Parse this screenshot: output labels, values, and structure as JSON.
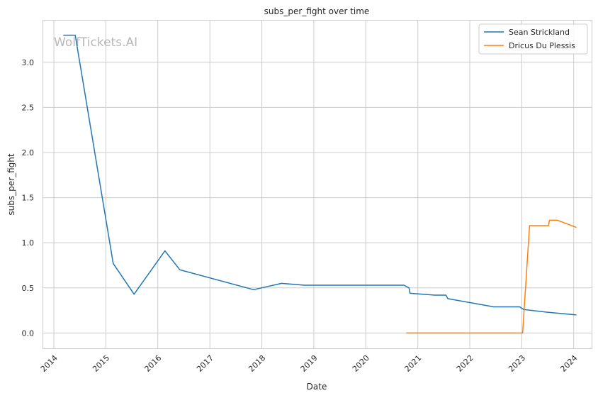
{
  "chart_data": {
    "type": "line",
    "title": "subs_per_fight over time",
    "xlabel": "Date",
    "ylabel": "subs_per_fight",
    "watermark": "WolfTickets.AI",
    "x_ticks": [
      "2014",
      "2015",
      "2016",
      "2017",
      "2018",
      "2019",
      "2020",
      "2021",
      "2022",
      "2023",
      "2024"
    ],
    "y_ticks": [
      "0.0",
      "0.5",
      "1.0",
      "1.5",
      "2.0",
      "2.5",
      "3.0"
    ],
    "xlim": [
      "2013-10-13",
      "2024-05-06"
    ],
    "ylim": [
      -0.17,
      3.47
    ],
    "grid": true,
    "legend_position": "top-right",
    "series": [
      {
        "name": "Sean Strickland",
        "color": "#1f77b4",
        "points": [
          [
            "2014-03-08",
            3.3
          ],
          [
            "2014-05-31",
            3.3
          ],
          [
            "2015-02-22",
            0.77
          ],
          [
            "2015-07-18",
            0.43
          ],
          [
            "2016-02-20",
            0.91
          ],
          [
            "2016-06-04",
            0.7
          ],
          [
            "2017-11-04",
            0.48
          ],
          [
            "2018-05-19",
            0.55
          ],
          [
            "2018-10-27",
            0.53
          ],
          [
            "2020-09-26",
            0.53
          ],
          [
            "2020-10-31",
            0.5
          ],
          [
            "2020-11-07",
            0.44
          ],
          [
            "2021-05-01",
            0.42
          ],
          [
            "2021-07-17",
            0.42
          ],
          [
            "2021-07-31",
            0.38
          ],
          [
            "2022-06-18",
            0.29
          ],
          [
            "2022-12-17",
            0.29
          ],
          [
            "2023-01-14",
            0.26
          ],
          [
            "2023-07-01",
            0.23
          ],
          [
            "2024-01-20",
            0.2
          ]
        ]
      },
      {
        "name": "Dricus Du Plessis",
        "color": "#ff7f0e",
        "points": [
          [
            "2020-10-11",
            0.0
          ],
          [
            "2023-01-07",
            0.0
          ],
          [
            "2023-02-25",
            1.19
          ],
          [
            "2023-07-08",
            1.19
          ],
          [
            "2023-07-15",
            1.25
          ],
          [
            "2023-09-09",
            1.25
          ],
          [
            "2024-01-20",
            1.17
          ]
        ]
      }
    ]
  }
}
